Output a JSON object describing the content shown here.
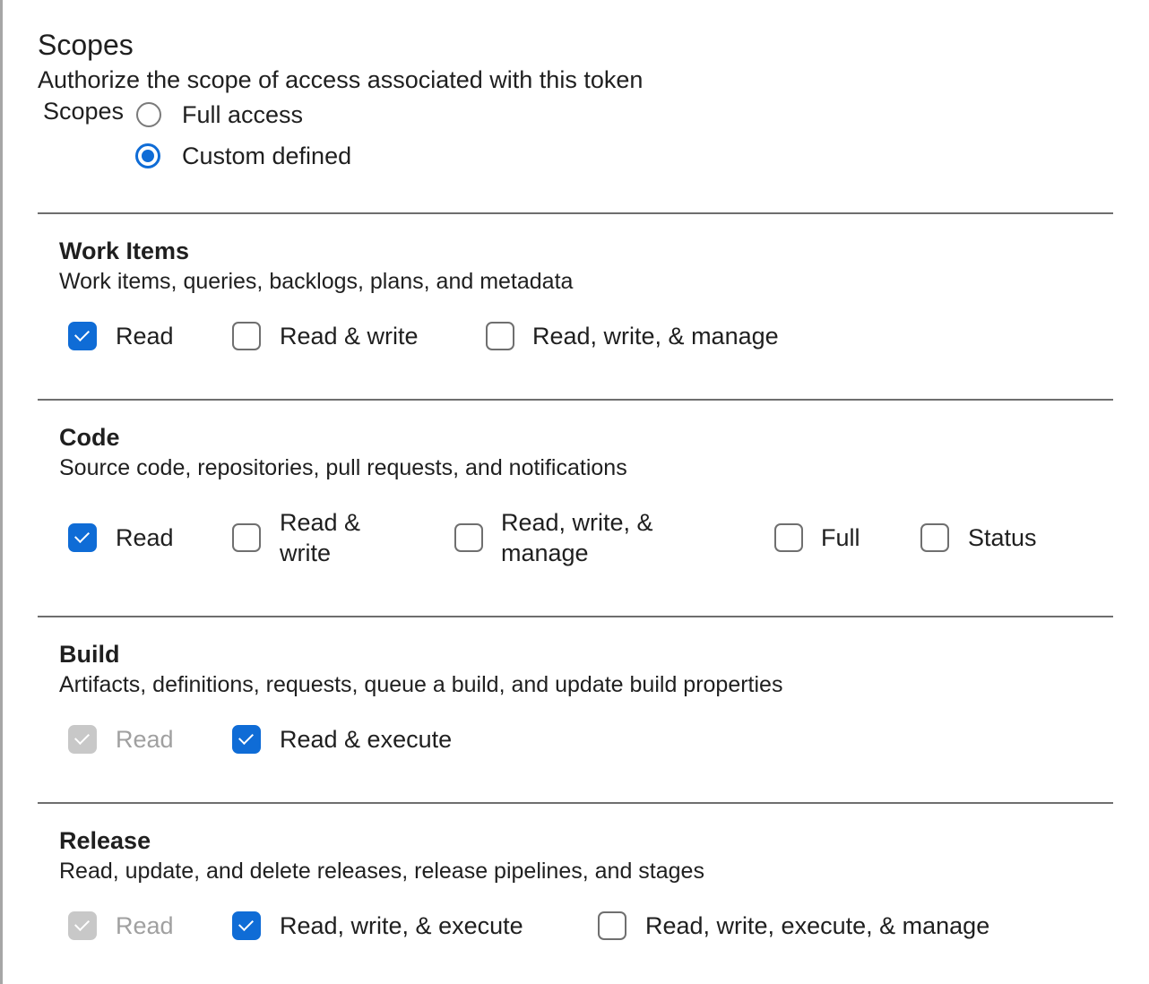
{
  "header": {
    "title": "Scopes",
    "subtitle": "Authorize the scope of access associated with this token",
    "scopes_label": "Scopes"
  },
  "scope_type": {
    "options": [
      {
        "label": "Full access",
        "selected": false
      },
      {
        "label": "Custom defined",
        "selected": true
      }
    ]
  },
  "accent_color": "#0f6cd6",
  "sections": [
    {
      "title": "Work Items",
      "description": "Work items, queries, backlogs, plans, and metadata",
      "options": [
        {
          "label": "Read",
          "checked": true,
          "disabled": false
        },
        {
          "label": "Read & write",
          "checked": false,
          "disabled": false
        },
        {
          "label": "Read, write, & manage",
          "checked": false,
          "disabled": false
        }
      ]
    },
    {
      "title": "Code",
      "description": "Source code, repositories, pull requests, and notifications",
      "options": [
        {
          "label": "Read",
          "checked": true,
          "disabled": false
        },
        {
          "label": "Read & write",
          "checked": false,
          "disabled": false
        },
        {
          "label": "Read, write, & manage",
          "checked": false,
          "disabled": false
        },
        {
          "label": "Full",
          "checked": false,
          "disabled": false
        },
        {
          "label": "Status",
          "checked": false,
          "disabled": false
        }
      ]
    },
    {
      "title": "Build",
      "description": "Artifacts, definitions, requests, queue a build, and update build properties",
      "options": [
        {
          "label": "Read",
          "checked": true,
          "disabled": true
        },
        {
          "label": "Read & execute",
          "checked": true,
          "disabled": false
        }
      ]
    },
    {
      "title": "Release",
      "description": "Read, update, and delete releases, release pipelines, and stages",
      "options": [
        {
          "label": "Read",
          "checked": true,
          "disabled": true
        },
        {
          "label": "Read, write, & execute",
          "checked": true,
          "disabled": false
        },
        {
          "label": "Read, write, execute, & manage",
          "checked": false,
          "disabled": false
        }
      ]
    }
  ]
}
